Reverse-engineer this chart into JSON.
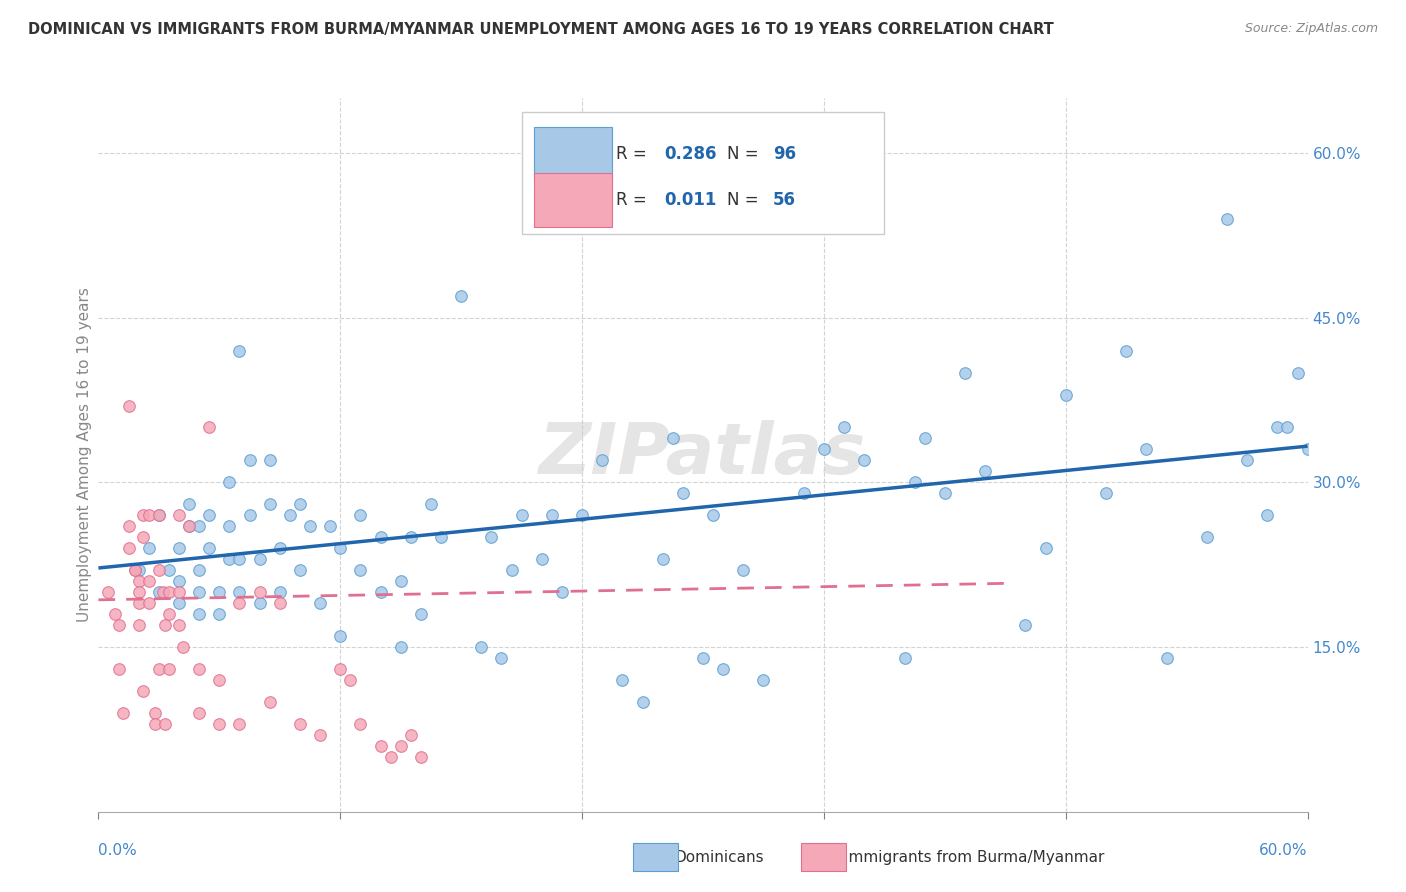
{
  "title": "DOMINICAN VS IMMIGRANTS FROM BURMA/MYANMAR UNEMPLOYMENT AMONG AGES 16 TO 19 YEARS CORRELATION CHART",
  "source": "Source: ZipAtlas.com",
  "ylabel": "Unemployment Among Ages 16 to 19 years",
  "xlim": [
    0,
    0.6
  ],
  "ylim": [
    0,
    0.65
  ],
  "yticks": [
    0.15,
    0.3,
    0.45,
    0.6
  ],
  "ytick_labels": [
    "15.0%",
    "30.0%",
    "45.0%",
    "60.0%"
  ],
  "color_blue_fill": "#a8c8e8",
  "color_blue_edge": "#5a9fd4",
  "color_blue_line": "#2166ac",
  "color_pink_fill": "#f4a8b8",
  "color_pink_edge": "#e07090",
  "color_pink_line": "#e07090",
  "color_text_blue": "#2166ac",
  "color_axis_blue": "#4488cc",
  "watermark": "ZIPatlas",
  "blue_scatter_x": [
    0.02,
    0.025,
    0.03,
    0.035,
    0.03,
    0.04,
    0.04,
    0.04,
    0.045,
    0.045,
    0.05,
    0.05,
    0.05,
    0.05,
    0.055,
    0.055,
    0.06,
    0.06,
    0.065,
    0.065,
    0.065,
    0.07,
    0.07,
    0.07,
    0.075,
    0.075,
    0.08,
    0.08,
    0.085,
    0.085,
    0.09,
    0.09,
    0.095,
    0.1,
    0.1,
    0.105,
    0.11,
    0.115,
    0.12,
    0.12,
    0.13,
    0.13,
    0.14,
    0.14,
    0.15,
    0.15,
    0.155,
    0.16,
    0.165,
    0.17,
    0.18,
    0.19,
    0.195,
    0.2,
    0.205,
    0.21,
    0.22,
    0.225,
    0.23,
    0.24,
    0.25,
    0.26,
    0.27,
    0.28,
    0.285,
    0.29,
    0.3,
    0.305,
    0.31,
    0.32,
    0.33,
    0.35,
    0.36,
    0.37,
    0.38,
    0.4,
    0.405,
    0.41,
    0.42,
    0.43,
    0.44,
    0.46,
    0.47,
    0.48,
    0.5,
    0.51,
    0.52,
    0.53,
    0.55,
    0.56,
    0.57,
    0.58,
    0.585,
    0.59,
    0.595,
    0.6
  ],
  "blue_scatter_y": [
    0.22,
    0.24,
    0.2,
    0.22,
    0.27,
    0.19,
    0.21,
    0.24,
    0.26,
    0.28,
    0.18,
    0.2,
    0.22,
    0.26,
    0.24,
    0.27,
    0.18,
    0.2,
    0.23,
    0.26,
    0.3,
    0.2,
    0.23,
    0.42,
    0.27,
    0.32,
    0.19,
    0.23,
    0.28,
    0.32,
    0.2,
    0.24,
    0.27,
    0.22,
    0.28,
    0.26,
    0.19,
    0.26,
    0.16,
    0.24,
    0.22,
    0.27,
    0.2,
    0.25,
    0.15,
    0.21,
    0.25,
    0.18,
    0.28,
    0.25,
    0.47,
    0.15,
    0.25,
    0.14,
    0.22,
    0.27,
    0.23,
    0.27,
    0.2,
    0.27,
    0.32,
    0.12,
    0.1,
    0.23,
    0.34,
    0.29,
    0.14,
    0.27,
    0.13,
    0.22,
    0.12,
    0.29,
    0.33,
    0.35,
    0.32,
    0.14,
    0.3,
    0.34,
    0.29,
    0.4,
    0.31,
    0.17,
    0.24,
    0.38,
    0.29,
    0.42,
    0.33,
    0.14,
    0.25,
    0.54,
    0.32,
    0.27,
    0.35,
    0.35,
    0.4,
    0.33
  ],
  "pink_scatter_x": [
    0.005,
    0.008,
    0.01,
    0.01,
    0.012,
    0.015,
    0.015,
    0.015,
    0.018,
    0.018,
    0.02,
    0.02,
    0.02,
    0.02,
    0.022,
    0.022,
    0.022,
    0.025,
    0.025,
    0.025,
    0.028,
    0.028,
    0.03,
    0.03,
    0.03,
    0.032,
    0.033,
    0.033,
    0.035,
    0.035,
    0.035,
    0.04,
    0.04,
    0.04,
    0.042,
    0.045,
    0.05,
    0.05,
    0.055,
    0.06,
    0.06,
    0.07,
    0.07,
    0.08,
    0.085,
    0.09,
    0.1,
    0.11,
    0.12,
    0.125,
    0.13,
    0.14,
    0.145,
    0.15,
    0.155,
    0.16
  ],
  "pink_scatter_y": [
    0.2,
    0.18,
    0.17,
    0.13,
    0.09,
    0.37,
    0.26,
    0.24,
    0.22,
    0.22,
    0.21,
    0.2,
    0.19,
    0.17,
    0.27,
    0.25,
    0.11,
    0.27,
    0.21,
    0.19,
    0.09,
    0.08,
    0.27,
    0.22,
    0.13,
    0.2,
    0.17,
    0.08,
    0.2,
    0.18,
    0.13,
    0.27,
    0.2,
    0.17,
    0.15,
    0.26,
    0.13,
    0.09,
    0.35,
    0.12,
    0.08,
    0.19,
    0.08,
    0.2,
    0.1,
    0.19,
    0.08,
    0.07,
    0.13,
    0.12,
    0.08,
    0.06,
    0.05,
    0.06,
    0.07,
    0.05
  ],
  "blue_line_x": [
    0.0,
    0.6
  ],
  "blue_line_y": [
    0.222,
    0.333
  ],
  "pink_line_x": [
    0.0,
    0.45
  ],
  "pink_line_y": [
    0.193,
    0.208
  ]
}
